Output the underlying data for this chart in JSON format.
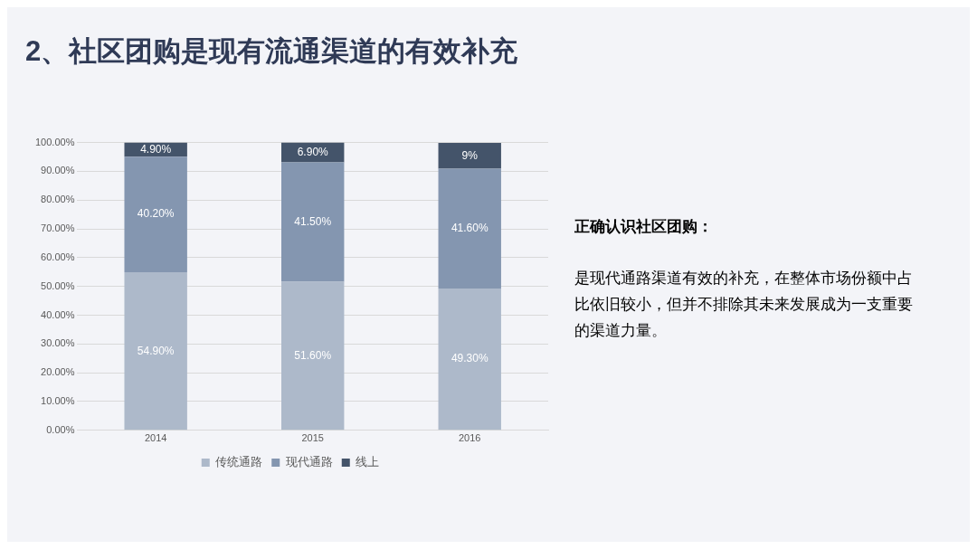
{
  "chart_data": {
    "type": "bar",
    "title": "2、社区团购是现有流通渠道的有效补充",
    "categories": [
      "2014",
      "2015",
      "2016"
    ],
    "stacked": true,
    "series": [
      {
        "name": "传统通路",
        "color": "#adb9ca",
        "values": [
          54.9,
          51.6,
          49.3
        ],
        "value_labels": [
          "54.90%",
          "51.60%",
          "49.30%"
        ]
      },
      {
        "name": "现代通路",
        "color": "#8496b0",
        "values": [
          40.2,
          41.5,
          41.6
        ],
        "value_labels": [
          "40.20%",
          "41.50%",
          "41.60%"
        ]
      },
      {
        "name": "线上",
        "color": "#44546a",
        "values": [
          4.9,
          6.9,
          9
        ],
        "value_labels": [
          "4.90%",
          "6.90%",
          "9%"
        ]
      }
    ],
    "ylim": [
      0,
      100
    ],
    "yticks": [
      {
        "value": 0,
        "label": "0.00%"
      },
      {
        "value": 10,
        "label": "10.00%"
      },
      {
        "value": 20,
        "label": "20.00%"
      },
      {
        "value": 30,
        "label": "30.00%"
      },
      {
        "value": 40,
        "label": "40.00%"
      },
      {
        "value": 50,
        "label": "50.00%"
      },
      {
        "value": 60,
        "label": "60.00%"
      },
      {
        "value": 70,
        "label": "70.00%"
      },
      {
        "value": 80,
        "label": "80.00%"
      },
      {
        "value": 90,
        "label": "90.00%"
      },
      {
        "value": 100,
        "label": "100.00%"
      }
    ],
    "grid": "y",
    "legend": "bottom",
    "annotations": [
      "正确认识社区团购：",
      "是现代通路渠道有效的补充，在整体市场份额中占比依旧较小，但并不排除其未来发展成为一支重要的渠道力量。"
    ]
  }
}
